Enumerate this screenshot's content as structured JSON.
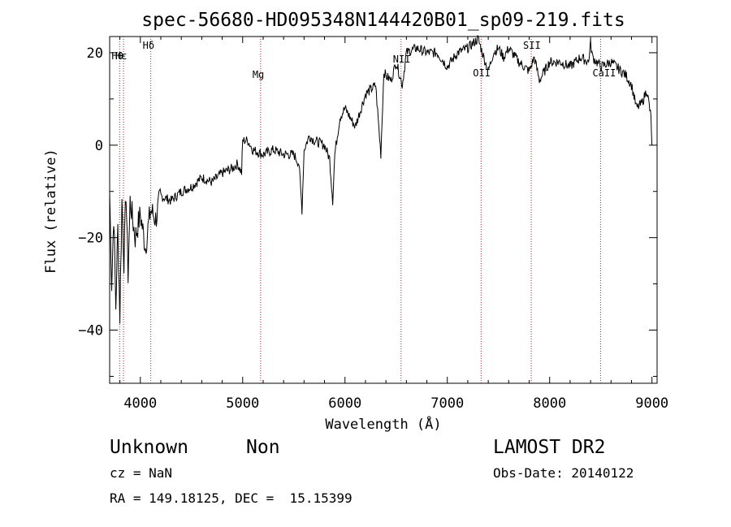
{
  "chart_data": {
    "type": "line",
    "title": "spec-56680-HD095348N144420B01_sp09-219.fits",
    "xlabel": "Wavelength (Å)",
    "ylabel": "Flux (relative)",
    "xlim": [
      3700,
      9050
    ],
    "ylim": [
      -51.5,
      23.5
    ],
    "xticks": [
      4000,
      5000,
      6000,
      7000,
      8000,
      9000
    ],
    "yticks": [
      -40,
      -20,
      0,
      20
    ],
    "grid": false,
    "line_color": "#000000",
    "marker_color": "#b22222",
    "series": [
      {
        "x": [
          3700,
          3720,
          3740,
          3760,
          3780,
          3800,
          3820,
          3840,
          3860,
          3880,
          3900,
          3950,
          4000,
          4050,
          4100,
          4150,
          4200,
          4300,
          4400,
          4500,
          4600,
          4700,
          4800,
          4900,
          4950,
          4990,
          5000,
          5050,
          5100,
          5200,
          5300,
          5400,
          5500,
          5550,
          5580,
          5600,
          5650,
          5700,
          5800,
          5850,
          5880,
          5900,
          5950,
          6000,
          6100,
          6200,
          6300,
          6350,
          6380,
          6400,
          6450,
          6500,
          6560,
          6600,
          6700,
          6800,
          6900,
          7000,
          7100,
          7200,
          7300,
          7400,
          7450,
          7500,
          7550,
          7600,
          7700,
          7800,
          7850,
          7900,
          8000,
          8100,
          8200,
          8300,
          8380,
          8400,
          8420,
          8500,
          8600,
          8700,
          8750,
          8800,
          8850,
          8900,
          8950,
          8990,
          9000
        ],
        "y": [
          -10,
          -30,
          -15,
          -35,
          -18,
          -37,
          -12,
          -25,
          -10,
          -28,
          -12,
          -20,
          -15,
          -22,
          -14,
          -16,
          -11,
          -12,
          -10,
          -9,
          -7,
          -8,
          -6,
          -5,
          -4,
          -6,
          1,
          1,
          -1,
          -2,
          -1,
          -2,
          -2,
          -4,
          -14,
          -1,
          2,
          1,
          0,
          -3,
          -12,
          -2,
          6,
          8,
          4,
          11,
          13,
          -2,
          16,
          15,
          14,
          18,
          13,
          20,
          21,
          20,
          20,
          17,
          20,
          21,
          23,
          16,
          20,
          21,
          19,
          21,
          18,
          16,
          19,
          14,
          18,
          18,
          17,
          19,
          18,
          22,
          19,
          17,
          18,
          16,
          15,
          13,
          8,
          9,
          12,
          6,
          0
        ]
      }
    ],
    "line_markers": [
      {
        "label": "Hθ",
        "x": 3798
      },
      {
        "label": "Hε",
        "x": 3835
      },
      {
        "label": "Hδ",
        "x": 4102
      },
      {
        "label": "Mg",
        "x": 5175
      },
      {
        "label": "NII",
        "x": 6548
      },
      {
        "label": "OII",
        "x": 7330
      },
      {
        "label": "SII",
        "x": 7820
      },
      {
        "label": "CaII",
        "x": 8498
      }
    ]
  },
  "footer": {
    "classification": "Unknown",
    "subclass": "Non",
    "survey": "LAMOST DR2",
    "redshift": "cz = NaN",
    "obs_date": "Obs-Date: 20140122",
    "coordinates": "RA = 149.18125, DEC =  15.15399"
  }
}
